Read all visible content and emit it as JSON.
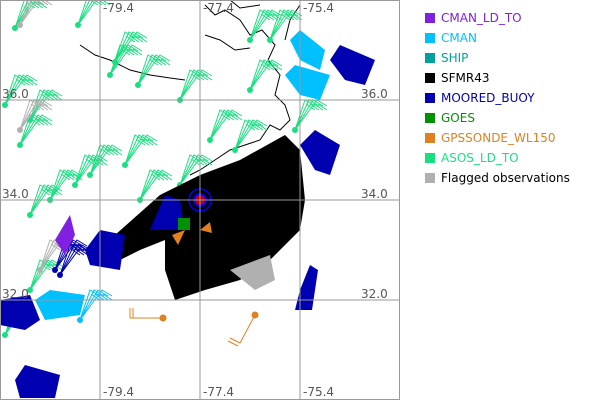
{
  "map": {
    "top_lon_labels": [
      "-79.4",
      "-77.4",
      "-75.4"
    ],
    "bottom_lon_labels": [
      "-79.4",
      "-77.4",
      "-75.4"
    ],
    "right_lat_labels": [
      "36.0",
      "34.0",
      "32.0"
    ],
    "left_lat_labels": [
      "36.0",
      "34.0",
      "32.0"
    ],
    "grid_color": "#999999"
  },
  "legend": {
    "items": [
      {
        "label": "CMAN_LD_TO",
        "color": "#8020e0"
      },
      {
        "label": "CMAN",
        "color": "#00c0ff"
      },
      {
        "label": "SHIP",
        "color": "#00a0a0"
      },
      {
        "label": "SFMR43",
        "color": "#000000"
      },
      {
        "label": "MOORED_BUOY",
        "color": "#0000b0"
      },
      {
        "label": "GOES",
        "color": "#009000"
      },
      {
        "label": "GPSSONDE_WL150",
        "color": "#e08020"
      },
      {
        "label": "ASOS_LD_TO",
        "color": "#18e080"
      },
      {
        "label": "Flagged observations",
        "color": "#b0b0b0"
      }
    ]
  }
}
